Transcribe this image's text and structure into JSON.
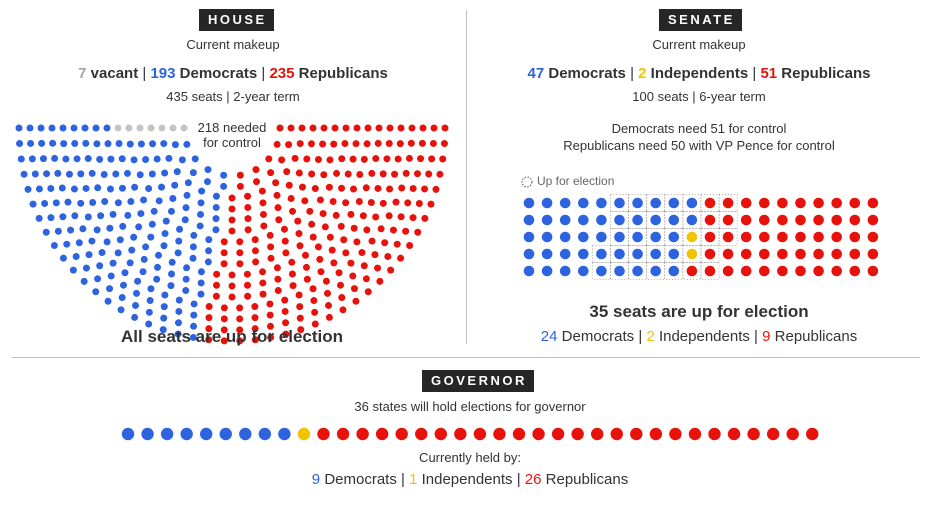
{
  "colors": {
    "dem": "#2e63e0",
    "ind": "#f0c400",
    "rep": "#e8120c",
    "vacant": "#c4c4c4"
  },
  "house": {
    "tag": "HOUSE",
    "subtitle": "Current makeup",
    "vacant_count": "7",
    "vacant_label": "vacant",
    "dem_count": "193",
    "dem_label": "Democrats",
    "rep_count": "235",
    "rep_label": "Republicans",
    "sep": "|",
    "seats_info": "435 seats | 2-year term",
    "needed_line1": "218 needed",
    "needed_line2": "for control",
    "footer": "All seats are up for election"
  },
  "senate": {
    "tag": "SENATE",
    "subtitle": "Current makeup",
    "dem_count": "47",
    "dem_label": "Democrats",
    "ind_count": "2",
    "ind_label": "Independents",
    "rep_count": "51",
    "rep_label": "Republicans",
    "sep": "|",
    "seats_info": "100 seats | 6-year term",
    "control_dem": "Democrats need 51 for control",
    "control_rep": "Republicans need 50 with VP Pence for control",
    "legend_label": "Up for election",
    "up_title": "35 seats are up for election",
    "up_dem_count": "24",
    "up_dem_label": "Democrats",
    "up_ind_count": "2",
    "up_ind_label": "Independents",
    "up_rep_count": "9",
    "up_rep_label": "Republicans"
  },
  "governor": {
    "tag": "GOVERNOR",
    "subtitle": "36 states will hold elections for governor",
    "held_by": "Currently held by:",
    "dem_count": "9",
    "dem_label": "Democrats",
    "ind_count": "1",
    "ind_label": "Independents",
    "rep_count": "26",
    "rep_label": "Republicans",
    "sep": "|"
  },
  "chart_data": [
    {
      "type": "parliament",
      "title": "House current makeup",
      "total_seats": 435,
      "majority": 218,
      "series": [
        {
          "name": "vacant",
          "value": 7
        },
        {
          "name": "Democrats",
          "value": 193
        },
        {
          "name": "Republicans",
          "value": 235
        }
      ]
    },
    {
      "type": "dot-grid",
      "title": "Senate current makeup",
      "total_seats": 100,
      "series": [
        {
          "name": "Democrats",
          "value": 47,
          "up_for_election": 24
        },
        {
          "name": "Independents",
          "value": 2,
          "up_for_election": 2
        },
        {
          "name": "Republicans",
          "value": 51,
          "up_for_election": 9
        }
      ],
      "up_for_election_total": 35
    },
    {
      "type": "dot-row",
      "title": "Governor races currently held by",
      "total": 36,
      "series": [
        {
          "name": "Democrats",
          "value": 9
        },
        {
          "name": "Independents",
          "value": 1
        },
        {
          "name": "Republicans",
          "value": 26
        }
      ]
    }
  ]
}
